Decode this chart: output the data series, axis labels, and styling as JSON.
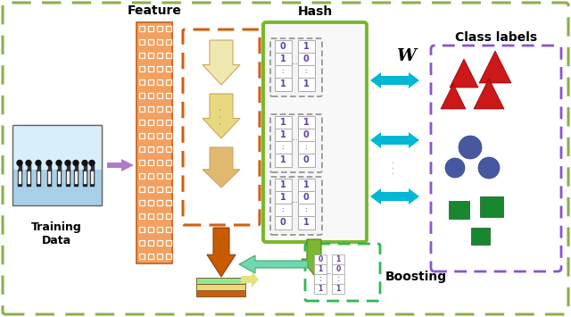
{
  "bg_color": "#ffffff",
  "outer_dash_color": "#8ab04a",
  "training_label": "Training\nData",
  "feature_label": "Feature",
  "hash_label": "Hash",
  "class_label": "Class labels",
  "boosting_label": "Boosting",
  "w_label": "W",
  "arrow_purple": "#b07ac4",
  "arrow_orange": "#c85a00",
  "arrow_cyan": "#00b8d4",
  "arrow_green": "#7ab830",
  "arrow_teal": "#70d8b0",
  "arrow_yellow": "#e8e080",
  "box_orange_dash": "#d06010",
  "box_green_solid": "#78b828",
  "box_green_dash": "#30b850",
  "matrix_text_color": "#6040a8",
  "triangle_red": "#cc1818",
  "circle_blue": "#4858a0",
  "square_green": "#188830",
  "feat_color": "#f4a060",
  "feat_edge": "#d07030",
  "stacked_colors": [
    "#c86010",
    "#f0d870",
    "#90e890"
  ],
  "arrow_colors_right": [
    "#f0e8b0",
    "#e8d880",
    "#e0b870"
  ]
}
